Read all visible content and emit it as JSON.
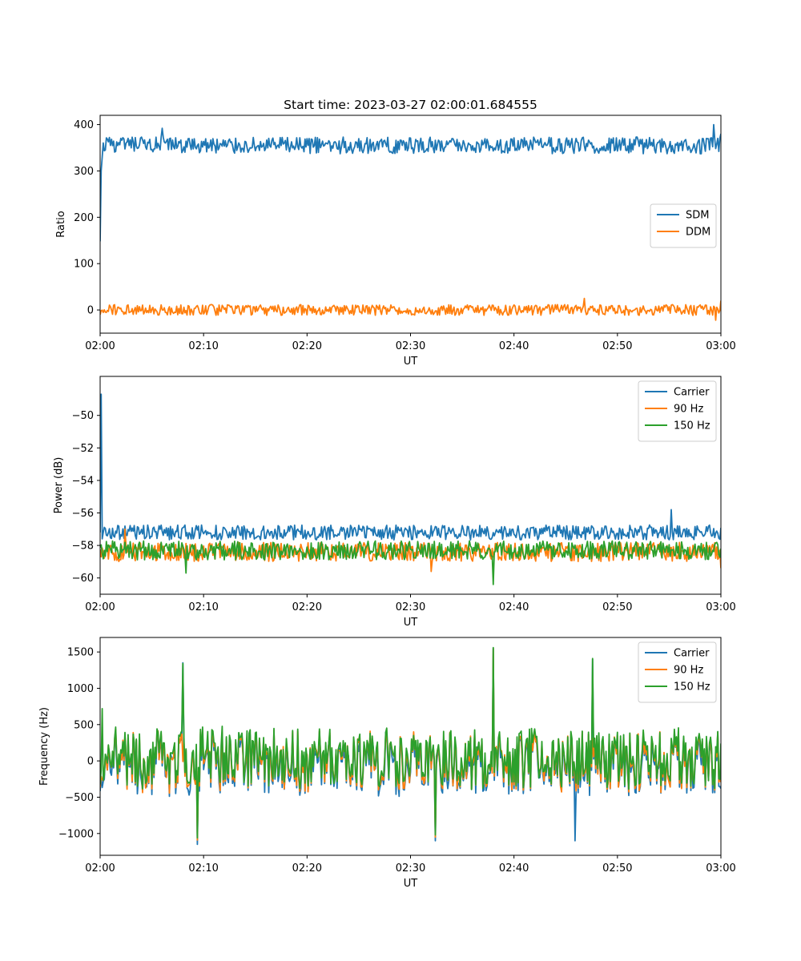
{
  "figure_title": "Start time: 2023-03-27 02:00:01.684555",
  "chart_data": [
    {
      "type": "line",
      "title": "Start time: 2023-03-27 02:00:01.684555",
      "xlabel": "UT",
      "ylabel": "Ratio",
      "x_ticks": [
        "02:00",
        "02:10",
        "02:20",
        "02:30",
        "02:40",
        "02:50",
        "03:00"
      ],
      "x_range_minutes": [
        0,
        60
      ],
      "ylim": [
        -50,
        420
      ],
      "y_ticks": [
        0,
        100,
        200,
        300,
        400
      ],
      "y_tick_labels": [
        "0",
        "100",
        "200",
        "300",
        "400"
      ],
      "legend_position": "center-right",
      "grid": false,
      "series": [
        {
          "name": "SDM",
          "color": "#1f77b4",
          "mean": 355,
          "noise": 14,
          "spike": 0,
          "x": [
            0,
            0.2,
            0.5,
            1,
            6,
            46,
            59.3,
            60
          ],
          "y": [
            148,
            300,
            345,
            355,
            392,
            370,
            400,
            380
          ]
        },
        {
          "name": "DDM",
          "color": "#ff7f0e",
          "mean": 0,
          "noise": 9,
          "spike": 0,
          "x": [
            0,
            46.8,
            59.5,
            60
          ],
          "y": [
            -10,
            25,
            -22,
            20
          ]
        }
      ]
    },
    {
      "type": "line",
      "title": "",
      "xlabel": "UT",
      "ylabel": "Power (dB)",
      "x_ticks": [
        "02:00",
        "02:10",
        "02:20",
        "02:30",
        "02:40",
        "02:50",
        "03:00"
      ],
      "x_range_minutes": [
        0,
        60
      ],
      "ylim": [
        -61,
        -47.6
      ],
      "y_ticks": [
        -60,
        -58,
        -56,
        -54,
        -52,
        -50
      ],
      "y_tick_labels": [
        "−60",
        "−58",
        "−56",
        "−54",
        "−52",
        "−50"
      ],
      "legend_position": "top-right",
      "grid": false,
      "series": [
        {
          "name": "Carrier",
          "color": "#1f77b4",
          "mean": -57.2,
          "noise": 0.35,
          "spike": 1,
          "x": [
            0,
            0.1,
            0.3,
            55.2
          ],
          "y": [
            -57.2,
            -48.7,
            -57.2,
            -55.8
          ]
        },
        {
          "name": "90 Hz",
          "color": "#ff7f0e",
          "mean": -58.4,
          "noise": 0.45,
          "spike": 0,
          "x": [
            2.4,
            32,
            60
          ],
          "y": [
            -57.0,
            -59.6,
            -59.4
          ]
        },
        {
          "name": "150 Hz",
          "color": "#2ca02c",
          "mean": -58.3,
          "noise": 0.45,
          "spike": 0,
          "x": [
            8.3,
            38,
            38.1
          ],
          "y": [
            -59.7,
            -60.4,
            -58.4
          ]
        }
      ]
    },
    {
      "type": "line",
      "title": "",
      "xlabel": "UT",
      "ylabel": "Frequency (Hz)",
      "x_ticks": [
        "02:00",
        "02:10",
        "02:20",
        "02:30",
        "02:40",
        "02:50",
        "03:00"
      ],
      "x_range_minutes": [
        0,
        60
      ],
      "ylim": [
        -1300,
        1700
      ],
      "y_ticks": [
        -1000,
        -500,
        0,
        500,
        1000,
        1500
      ],
      "y_tick_labels": [
        "−1000",
        "−500",
        "0",
        "500",
        "1000",
        "1500"
      ],
      "legend_position": "top-right",
      "grid": false,
      "series": [
        {
          "name": "Carrier",
          "color": "#1f77b4",
          "mean": -40,
          "noise": 330,
          "spike": 0,
          "x": [
            8.0,
            9.4,
            32.4,
            38.0,
            45.9,
            47.6
          ],
          "y": [
            1350,
            -1150,
            -1100,
            1550,
            -1100,
            1400
          ]
        },
        {
          "name": "90 Hz",
          "color": "#ff7f0e",
          "mean": 0,
          "noise": 320,
          "spike": 0,
          "x": [
            9.4,
            32.4,
            38.0
          ],
          "y": [
            -1090,
            -1050,
            1550
          ]
        },
        {
          "name": "150 Hz",
          "color": "#2ca02c",
          "mean": 40,
          "noise": 320,
          "spike": 0,
          "x": [
            0.2,
            8.0,
            9.4,
            32.4,
            38.0,
            47.6,
            60
          ],
          "y": [
            720,
            1340,
            -1060,
            -1020,
            1560,
            1410,
            240
          ]
        }
      ]
    }
  ]
}
